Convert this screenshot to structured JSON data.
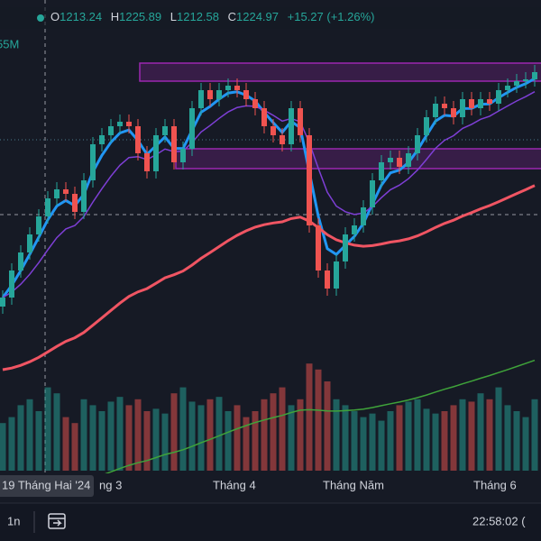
{
  "chart_data": {
    "type": "candlestick",
    "legend": {
      "o_key": "O",
      "o": "1213.24",
      "h_key": "H",
      "h": "1225.89",
      "l_key": "L",
      "l": "1212.58",
      "c_key": "C",
      "c": "1224.97",
      "change": "+15.27 (+1.26%)"
    },
    "volume_text": "55M",
    "x_labels": [
      "ng 3",
      "Tháng 4",
      "Tháng Năm",
      "Tháng 6"
    ],
    "crosshair_label": "19 Tháng Hai '24",
    "toolbar": {
      "interval": "1n",
      "clock": "22:58:02 ("
    },
    "up_color": "#26a69a",
    "down_color": "#ef5350",
    "ylim": [
      1100,
      1240
    ],
    "volume_ylim": [
      0,
      100
    ],
    "zones": [
      {
        "from": 1225,
        "to": 1235
      },
      {
        "from": 1176.5,
        "to": 1187.5
      }
    ],
    "zone_color": "#9c27b0",
    "ma_colors": [
      "#2196f3",
      "#7e3fd6",
      "#f05563",
      "#3fa33a"
    ],
    "open": [
      1100,
      1105,
      1120,
      1130,
      1140,
      1150,
      1160,
      1165,
      1162.5,
      1152.5,
      1170,
      1190,
      1195,
      1200,
      1202.5,
      1200,
      1185,
      1175,
      1195,
      1200,
      1180,
      1187.5,
      1210,
      1220,
      1215,
      1220,
      1222.5,
      1220,
      1215,
      1210,
      1200,
      1195,
      1190,
      1210,
      1195,
      1145,
      1120,
      1110,
      1125,
      1140,
      1145,
      1155,
      1170,
      1180,
      1182.5,
      1177.5,
      1185,
      1195,
      1205,
      1212.5,
      1210,
      1205,
      1215,
      1210,
      1215,
      1212.5,
      1220,
      1222.5,
      1225,
      1226
    ],
    "high": [
      1109,
      1124,
      1134,
      1144,
      1154,
      1164,
      1169,
      1169,
      1166.5,
      1174,
      1194,
      1199,
      1204,
      1206.5,
      1206.5,
      1204,
      1189,
      1199,
      1204,
      1204,
      1191.5,
      1214,
      1224,
      1224,
      1224,
      1226.5,
      1226.5,
      1224,
      1219,
      1214,
      1204,
      1199,
      1214,
      1214,
      1199,
      1149,
      1124,
      1129,
      1144,
      1149,
      1159,
      1174,
      1184,
      1186.5,
      1186.5,
      1189,
      1199,
      1209,
      1216.5,
      1216.5,
      1214,
      1219,
      1219,
      1219,
      1219,
      1224,
      1226.5,
      1229,
      1230,
      1234
    ],
    "low": [
      1096,
      1101,
      1116,
      1126,
      1136,
      1146,
      1156,
      1158.5,
      1148.5,
      1148.5,
      1166,
      1186,
      1191,
      1196,
      1196,
      1181,
      1171,
      1171,
      1191,
      1176,
      1176,
      1183.5,
      1206,
      1211,
      1211,
      1216,
      1216,
      1211,
      1206,
      1196,
      1191,
      1186,
      1186,
      1191,
      1141,
      1116,
      1106,
      1106,
      1121,
      1136,
      1141,
      1151,
      1166,
      1176,
      1173.5,
      1173.5,
      1181,
      1191,
      1201,
      1206,
      1201,
      1201,
      1206,
      1206,
      1208.5,
      1208.5,
      1216,
      1218.5,
      1221,
      1222
    ],
    "close": [
      1105,
      1120,
      1130,
      1140,
      1150,
      1160,
      1165,
      1162.5,
      1152.5,
      1170,
      1190,
      1195,
      1200,
      1202.5,
      1200,
      1185,
      1175,
      1195,
      1200,
      1180,
      1187.5,
      1210,
      1220,
      1215,
      1220,
      1222.5,
      1220,
      1215,
      1210,
      1200,
      1195,
      1190,
      1210,
      1195,
      1145,
      1120,
      1110,
      1125,
      1140,
      1145,
      1155,
      1170,
      1180,
      1182.5,
      1177.5,
      1185,
      1195,
      1205,
      1212.5,
      1210,
      1205,
      1215,
      1210,
      1215,
      1212.5,
      1220,
      1222.5,
      1225,
      1226,
      1230
    ],
    "volume": [
      40,
      45,
      55,
      60,
      50,
      70,
      65,
      45,
      40,
      60,
      55,
      50,
      58,
      62,
      55,
      60,
      50,
      52,
      48,
      65,
      70,
      58,
      55,
      60,
      62,
      50,
      55,
      45,
      50,
      60,
      65,
      70,
      55,
      60,
      90,
      85,
      75,
      60,
      55,
      50,
      45,
      48,
      42,
      50,
      55,
      58,
      60,
      52,
      48,
      50,
      55,
      60,
      58,
      65,
      60,
      70,
      55,
      50,
      45,
      60
    ]
  }
}
